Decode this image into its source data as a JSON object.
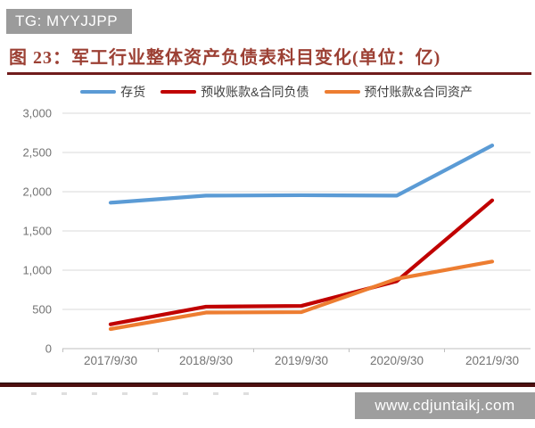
{
  "header": {
    "tag": "TG: MYYJJPP"
  },
  "title": {
    "text": "图 23：军工行业整体资产负债表科目变化(单位：亿)"
  },
  "colors": {
    "tag_bg": "#9b9b9b",
    "title_text": "#9c4034",
    "underline": "#701c1c",
    "grid": "#d9d9d9",
    "axis_line": "#bfbfbf",
    "axis_text": "#737373",
    "series_inventory": "#5b9bd5",
    "series_advance_receipts": "#c00000",
    "series_prepayments": "#ed7d31",
    "watermark_bg": "#9e9e9e",
    "bottom_bar": "#4e0f0f"
  },
  "chart_data": {
    "type": "line",
    "title": "军工行业整体资产负债表科目变化(单位：亿)",
    "categories": [
      "2017/9/30",
      "2018/9/30",
      "2019/9/30",
      "2020/9/30",
      "2021/9/30"
    ],
    "series": [
      {
        "name": "存货",
        "color": "#5b9bd5",
        "values": [
          1860,
          1950,
          1955,
          1950,
          2590
        ]
      },
      {
        "name": "预收账款&合同负债",
        "color": "#c00000",
        "values": [
          310,
          535,
          545,
          860,
          1890
        ]
      },
      {
        "name": "预付账款&合同资产",
        "color": "#ed7d31",
        "values": [
          250,
          460,
          465,
          890,
          1110
        ]
      }
    ],
    "xlabel": "",
    "ylabel": "",
    "ylim": [
      0,
      3000
    ],
    "ytick_step": 500,
    "ytick_labels": [
      "0",
      "500",
      "1,000",
      "1,500",
      "2,000",
      "2,500",
      "3,000"
    ],
    "grid": true,
    "legend_position": "top"
  },
  "footer": {
    "watermark": "www.cdjuntaikj.com"
  }
}
